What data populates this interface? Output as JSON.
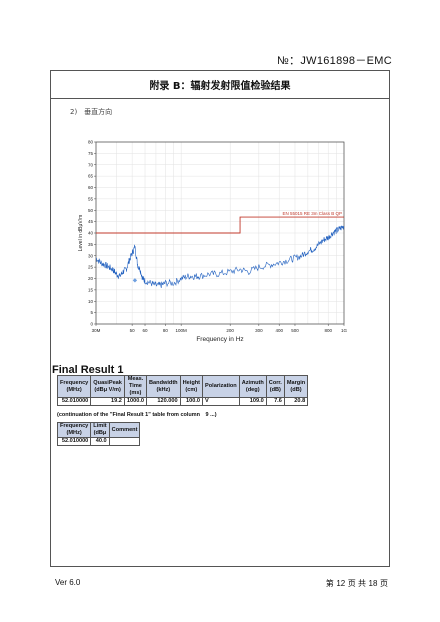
{
  "header": {
    "report_no": "№：JW161898－EMC"
  },
  "appendix_title": "附录 B：辐射发射限值检验结果",
  "section_label": "2)　垂直方向",
  "chart_data": {
    "type": "line",
    "xlabel": "Frequency in Hz",
    "ylabel": "Level in dBμV/m",
    "x_scale": "log",
    "xlim": [
      30,
      1000
    ],
    "ylim": [
      0,
      80
    ],
    "x_ticks": [
      30,
      50,
      60,
      80,
      100,
      200,
      300,
      400,
      500,
      800,
      1000
    ],
    "x_tick_labels": [
      "30M",
      "50",
      "60",
      "80",
      "100M",
      "200",
      "300",
      "400",
      "500",
      "800",
      "1G"
    ],
    "y_ticks": [
      0,
      5,
      10,
      15,
      20,
      25,
      30,
      35,
      40,
      45,
      50,
      55,
      60,
      65,
      70,
      75,
      80
    ],
    "y_tick_labels": [
      "0",
      "5",
      "10",
      "15",
      "20",
      "25",
      "30",
      "35",
      "40",
      "45",
      "50",
      "55",
      "60",
      "65",
      "70",
      "75",
      "80"
    ],
    "grid": true,
    "limit": {
      "name": "EN 55015 RE 3m Class B QP",
      "segments": [
        {
          "x": [
            30,
            230
          ],
          "y": 40
        },
        {
          "x": [
            230,
            1000
          ],
          "y": 47
        }
      ],
      "color": "#c0392b"
    },
    "series": [
      {
        "color": "#1f5fbf",
        "x": [
          30,
          32,
          34,
          36,
          38,
          40,
          42,
          44,
          46,
          48,
          50,
          52,
          54,
          56,
          58,
          60,
          65,
          70,
          75,
          80,
          90,
          100,
          110,
          120,
          130,
          150,
          170,
          200,
          230,
          260,
          300,
          350,
          400,
          450,
          500,
          550,
          600,
          650,
          700,
          750,
          800,
          850,
          900,
          950,
          1000
        ],
        "y": [
          29,
          27,
          26,
          25,
          24,
          22,
          21,
          23,
          24,
          28,
          31,
          34,
          26,
          24,
          20,
          19,
          18,
          17,
          17,
          18,
          18,
          20,
          21,
          21,
          21,
          22,
          22,
          23,
          24,
          23,
          25,
          26,
          27,
          28,
          29,
          30,
          32,
          33,
          35,
          37,
          38,
          40,
          41,
          42,
          43
        ]
      }
    ],
    "markers": [
      {
        "x": 52.01,
        "y": 19.2,
        "color": "#6fa0e0"
      }
    ]
  },
  "final_result": {
    "heading": "Final Result 1",
    "headers": [
      "Frequency\n(MHz)",
      "QuasiPeak\n(dBμ V/m)",
      "Meas.\nTime\n(ms)",
      "Bandwidth\n(kHz)",
      "Height\n(cm)",
      "Polarization",
      "Azimuth\n(deg)",
      "Corr.\n(dB)",
      "Margin\n(dB)"
    ],
    "rows": [
      [
        "52.010000",
        "19.2",
        "1000.0",
        "120.000",
        "100.0",
        "V",
        "109.0",
        "7.6",
        "20.8"
      ]
    ]
  },
  "continuation": "(continuation of the \"Final Result 1\" table from column　9 ...)",
  "limit_table": {
    "headers": [
      "Frequency\n(MHz)",
      "Limit\n(dBμ",
      "Comment"
    ],
    "rows": [
      [
        "52.010000",
        "40.0",
        ""
      ]
    ]
  },
  "footer": {
    "version": "Ver 6.0",
    "page_prefix": "第",
    "page_current": "12",
    "page_mid": "页 共",
    "page_total": "18",
    "page_suffix": "页"
  }
}
